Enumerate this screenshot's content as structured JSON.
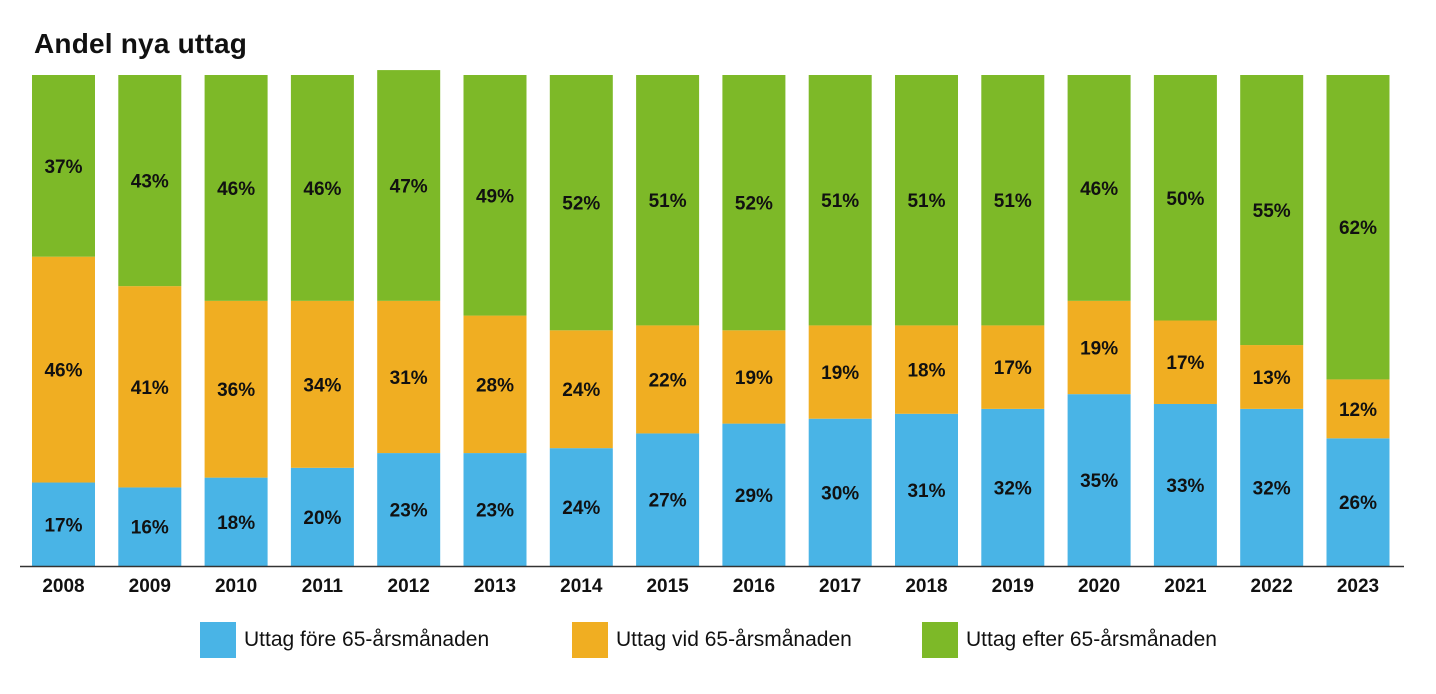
{
  "chart_data": {
    "type": "bar",
    "stacked": true,
    "title": "Andel nya uttag",
    "xlabel": "",
    "ylabel": "",
    "ylim": [
      0,
      100
    ],
    "grid": false,
    "legend_position": "bottom",
    "categories": [
      "2008",
      "2009",
      "2010",
      "2011",
      "2012",
      "2013",
      "2014",
      "2015",
      "2016",
      "2017",
      "2018",
      "2019",
      "2020",
      "2021",
      "2022",
      "2023"
    ],
    "series": [
      {
        "name": "Uttag före 65-årsmånaden",
        "color": "#49b4e6",
        "values": [
          17,
          16,
          18,
          20,
          23,
          23,
          24,
          27,
          29,
          30,
          31,
          32,
          35,
          33,
          32,
          26
        ],
        "labels": [
          "17%",
          "16%",
          "18%",
          "20%",
          "23%",
          "23%",
          "24%",
          "27%",
          "29%",
          "30%",
          "31%",
          "32%",
          "35%",
          "33%",
          "32%",
          "26%"
        ]
      },
      {
        "name": "Uttag vid 65-årsmånaden",
        "color": "#f0ae22",
        "values": [
          46,
          41,
          36,
          34,
          31,
          28,
          24,
          22,
          19,
          19,
          18,
          17,
          19,
          17,
          13,
          12
        ],
        "labels": [
          "46%",
          "41%",
          "36%",
          "34%",
          "31%",
          "28%",
          "24%",
          "22%",
          "19%",
          "19%",
          "18%",
          "17%",
          "19%",
          "17%",
          "13%",
          "12%"
        ]
      },
      {
        "name": "Uttag efter 65-årsmånaden",
        "color": "#7db928",
        "values": [
          37,
          43,
          46,
          46,
          47,
          49,
          52,
          51,
          52,
          51,
          51,
          51,
          46,
          50,
          55,
          62
        ],
        "labels": [
          "37%",
          "43%",
          "46%",
          "46%",
          "47%",
          "49%",
          "52%",
          "51%",
          "52%",
          "51%",
          "51%",
          "51%",
          "46%",
          "50%",
          "55%",
          "62%"
        ]
      }
    ]
  }
}
